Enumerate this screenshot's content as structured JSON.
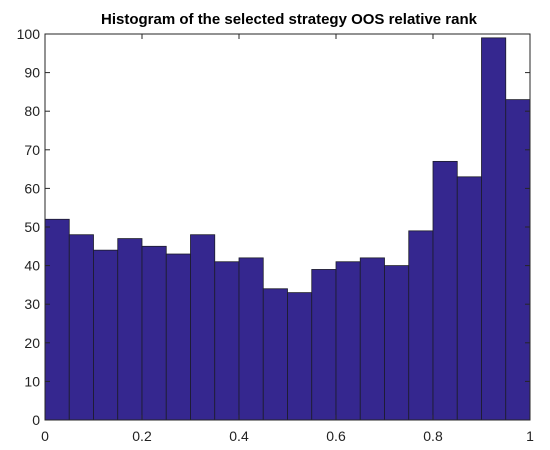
{
  "chart_data": {
    "type": "bar",
    "title": "Histogram of the selected strategy OOS relative rank",
    "xlabel": "",
    "ylabel": "",
    "bin_edges": [
      0,
      0.05,
      0.1,
      0.15,
      0.2,
      0.25,
      0.3,
      0.35,
      0.4,
      0.45,
      0.5,
      0.55,
      0.6,
      0.65,
      0.7,
      0.75,
      0.8,
      0.85,
      0.9,
      0.95,
      1.0
    ],
    "values": [
      52,
      48,
      44,
      47,
      45,
      43,
      48,
      41,
      42,
      34,
      33,
      39,
      41,
      42,
      40,
      49,
      67,
      63,
      99,
      83
    ],
    "xlim": [
      0,
      1
    ],
    "ylim": [
      0,
      100
    ],
    "xticks": [
      0,
      0.2,
      0.4,
      0.6,
      0.8,
      1
    ],
    "xtick_labels": [
      "0",
      "0.2",
      "0.4",
      "0.6",
      "0.8",
      "1"
    ],
    "yticks": [
      0,
      10,
      20,
      30,
      40,
      50,
      60,
      70,
      80,
      90,
      100
    ],
    "ytick_labels": [
      "0",
      "10",
      "20",
      "30",
      "40",
      "50",
      "60",
      "70",
      "80",
      "90",
      "100"
    ],
    "grid": false,
    "legend": "none",
    "bar_color": "#35278f",
    "edge_color": "#1c1c2a"
  }
}
